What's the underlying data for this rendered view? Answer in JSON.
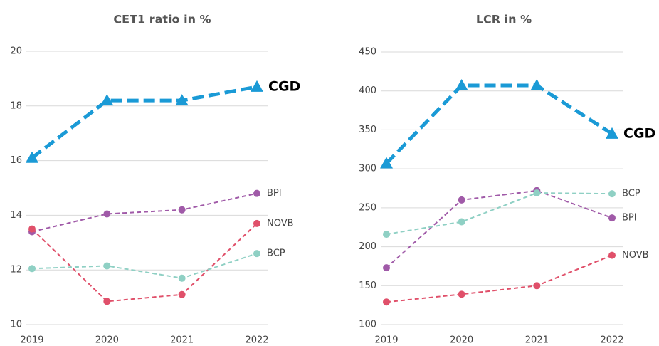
{
  "chart_data": [
    {
      "type": "line",
      "title": "CET1 ratio in %",
      "categories": [
        "2019",
        "2020",
        "2021",
        "2022"
      ],
      "ylim": [
        10,
        20
      ],
      "yticks": [
        10,
        12,
        14,
        16,
        18,
        20
      ],
      "grid": true,
      "series": [
        {
          "name": "CGD",
          "color": "#1a9ad6",
          "marker": "triangle",
          "values": [
            16.1,
            18.2,
            18.2,
            18.7
          ]
        },
        {
          "name": "BPI",
          "color": "#a05aa8",
          "marker": "circle",
          "values": [
            13.4,
            14.05,
            14.2,
            14.8
          ]
        },
        {
          "name": "NOVB",
          "color": "#e0506a",
          "marker": "circle",
          "values": [
            13.5,
            10.85,
            11.1,
            13.7
          ]
        },
        {
          "name": "BCP",
          "color": "#8fd0c4",
          "marker": "circle",
          "values": [
            12.05,
            12.15,
            11.7,
            12.6
          ]
        }
      ]
    },
    {
      "type": "line",
      "title": "LCR in %",
      "categories": [
        "2019",
        "2020",
        "2021",
        "2022"
      ],
      "ylim": [
        100,
        450
      ],
      "yticks": [
        100,
        150,
        200,
        250,
        300,
        350,
        400,
        450
      ],
      "grid": true,
      "series": [
        {
          "name": "CGD",
          "color": "#1a9ad6",
          "marker": "triangle",
          "values": [
            307,
            407,
            407,
            345
          ]
        },
        {
          "name": "BPI",
          "color": "#a05aa8",
          "marker": "circle",
          "values": [
            173,
            260,
            272,
            237
          ]
        },
        {
          "name": "BCP",
          "color": "#8fd0c4",
          "marker": "circle",
          "values": [
            216,
            232,
            269,
            268
          ]
        },
        {
          "name": "NOVB",
          "color": "#e0506a",
          "marker": "circle",
          "values": [
            129,
            139,
            150,
            189
          ]
        }
      ]
    }
  ]
}
